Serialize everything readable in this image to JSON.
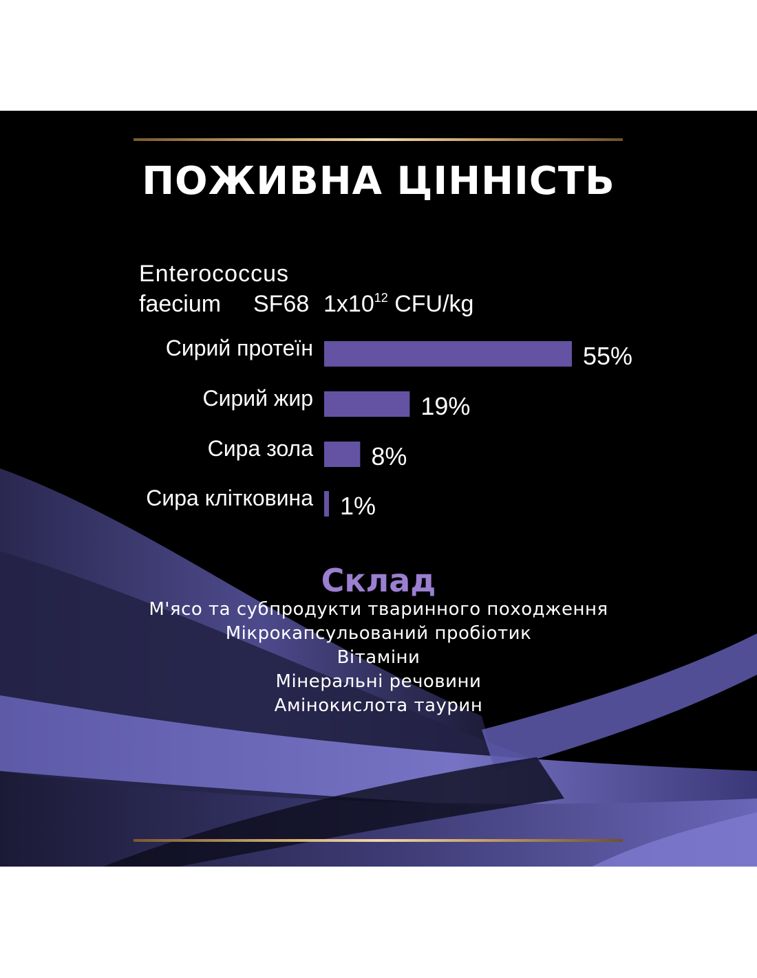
{
  "title": "ПОЖИВНА ЦІННІСТЬ",
  "probiotic": {
    "name_line1": "Enterococcus",
    "name_line2": "faecium",
    "strain": "SF68",
    "cfu_base": "1x10",
    "cfu_exp": "12",
    "cfu_unit": " CFU/kg"
  },
  "chart_data": {
    "type": "bar",
    "orientation": "horizontal",
    "categories": [
      "Сирий протеїн",
      "Сирий жир",
      "Сира зола",
      "Сира клітковина"
    ],
    "values": [
      55,
      19,
      8,
      1
    ],
    "value_labels": [
      "55%",
      "19%",
      "8%",
      "1%"
    ],
    "bar_color": "#6453a3",
    "grid": false
  },
  "composition": {
    "title": "Склад",
    "items": [
      "М'ясо та субпродукти тваринного походження",
      "Мікрокапсульований пробіотик",
      "Вітаміни",
      "Мінеральні речовини",
      "Амінокислота таурин"
    ]
  },
  "colors": {
    "background": "#000000",
    "accent_purple": "#9b7fd0",
    "gold": "#d9b77a"
  }
}
